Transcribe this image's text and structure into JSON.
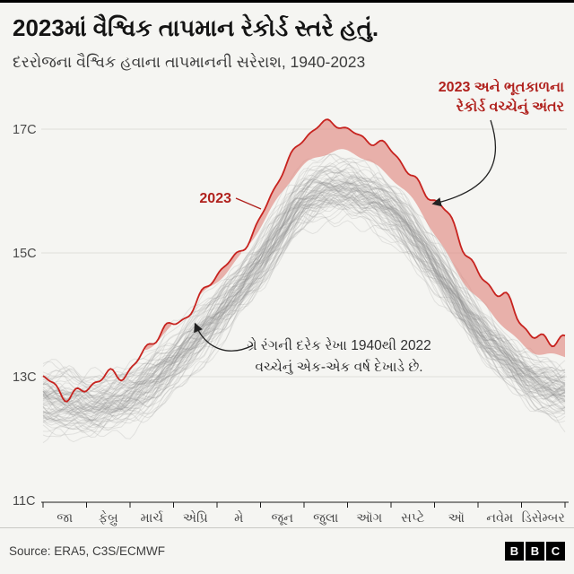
{
  "header": {
    "title": "2023માં વૈશ્વિક તાપમાન રેકોર્ડ સ્તરે હતું.",
    "subtitle": "દરરોજના વૈશ્વિક હવાના તાપમાનની સરેરાશ, 1940-2023"
  },
  "annotations": {
    "gap_label_lines": [
      "2023 અને ભૂતકાળના",
      "રેકોર્ડ વચ્ચેનું અંતર"
    ],
    "line_2023_label": "2023",
    "gray_label_lines": [
      "ગ્રે રંગની દરેક રેખા 1940થી 2022",
      "વચ્ચેનું એક-એક વર્ષ દેખાડે છે."
    ]
  },
  "footer": {
    "source": "Source: ERA5, C3S/ECMWF",
    "logo_letters": [
      "B",
      "B",
      "C"
    ]
  },
  "chart_data": {
    "type": "line",
    "title": "2023માં વૈશ્વિક તાપમાન રેકોર્ડ સ્તરે હતું.",
    "subtitle": "દરરોજના વૈશ્વિક હવાના તાપમાનની સરેરાશ, 1940-2023",
    "unit": "C",
    "ylim": [
      10.9,
      17.8
    ],
    "y_ticks": [
      {
        "value": 17,
        "label": "17C"
      },
      {
        "value": 15,
        "label": "15C"
      },
      {
        "value": 13,
        "label": "13C"
      },
      {
        "value": 11,
        "label": "11C"
      }
    ],
    "months": [
      "જા",
      "ફેબ્રુ",
      "માર્ચ",
      "એપ્રિ",
      "મે",
      "જૂન",
      "જુલા",
      "ઑગ",
      "સપ્ટે",
      "ઑ",
      "નવેમ",
      "ડિસેમ્બર"
    ],
    "series_2023": {
      "name": "2023",
      "color": "#c7231f",
      "monthly_c": [
        12.85,
        12.8,
        13.2,
        13.85,
        14.6,
        15.55,
        16.9,
        17.0,
        16.6,
        15.85,
        14.75,
        13.9,
        13.5
      ]
    },
    "past_years": {
      "label": "1940-2022",
      "count": 83,
      "color": "#8f8f8f",
      "record_high_monthly_c": [
        13.3,
        13.15,
        13.3,
        13.85,
        14.55,
        15.4,
        16.45,
        16.6,
        16.25,
        15.3,
        14.25,
        13.55,
        13.3
      ],
      "record_low_monthly_c": [
        11.95,
        11.9,
        12.1,
        12.65,
        13.4,
        14.3,
        15.25,
        15.45,
        15.15,
        14.3,
        13.3,
        12.55,
        12.2
      ]
    },
    "gap_fill_color": "#e08a82"
  }
}
